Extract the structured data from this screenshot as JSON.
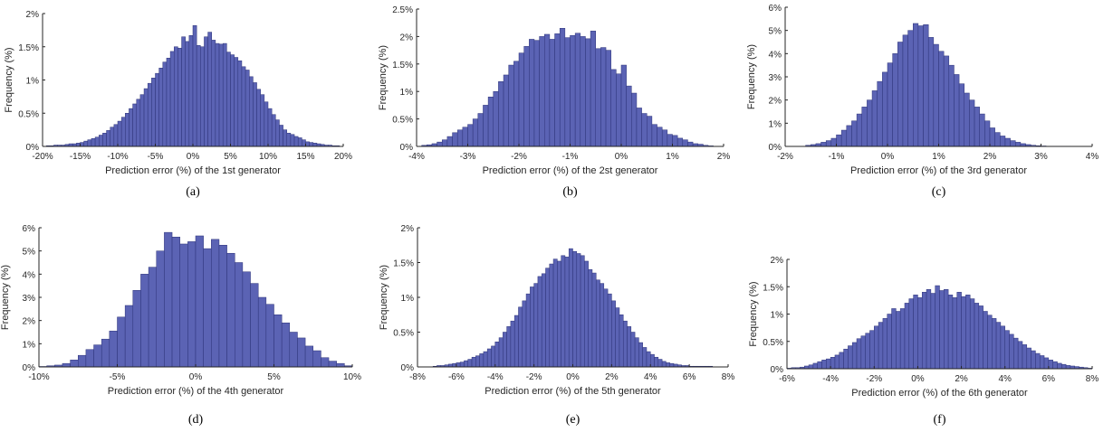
{
  "colors": {
    "bar_fill": "#5b63b4",
    "bar_edge": "#2c3278",
    "axis": "#262626"
  },
  "chart_data": [
    {
      "type": "bar",
      "caption": "(a)",
      "xlabel": "Prediction error (%) of the 1st generator",
      "ylabel": "Frequency (%)",
      "xlim": [
        -20,
        20
      ],
      "ylim": [
        0,
        2
      ],
      "xticks": [
        -20,
        -15,
        -10,
        -5,
        0,
        5,
        10,
        15,
        20
      ],
      "xtick_labels": [
        "-20%",
        "-15%",
        "-10%",
        "-5%",
        "0%",
        "5%",
        "10%",
        "15%",
        "20%"
      ],
      "yticks": [
        0,
        0.5,
        1,
        1.5,
        2
      ],
      "ytick_labels": [
        "0%",
        "0.5%",
        "1%",
        "1.5%",
        "2%"
      ],
      "bin_start": -19.5,
      "bin_width": 0.5,
      "values": [
        0.01,
        0.01,
        0.02,
        0.02,
        0.02,
        0.03,
        0.04,
        0.04,
        0.05,
        0.06,
        0.08,
        0.1,
        0.12,
        0.14,
        0.17,
        0.2,
        0.24,
        0.29,
        0.33,
        0.38,
        0.44,
        0.5,
        0.57,
        0.64,
        0.71,
        0.78,
        0.87,
        0.95,
        1.03,
        1.1,
        1.18,
        1.27,
        1.33,
        1.43,
        1.5,
        1.48,
        1.65,
        1.58,
        1.67,
        1.82,
        1.52,
        1.5,
        1.65,
        1.72,
        1.6,
        1.55,
        1.54,
        1.55,
        1.42,
        1.38,
        1.34,
        1.29,
        1.2,
        1.15,
        1.05,
        0.96,
        0.86,
        0.78,
        0.67,
        0.57,
        0.48,
        0.4,
        0.32,
        0.25,
        0.2,
        0.18,
        0.15,
        0.13,
        0.1,
        0.07,
        0.06,
        0.05,
        0.04,
        0.03,
        0.02,
        0.02,
        0.01,
        0.01
      ]
    },
    {
      "type": "bar",
      "caption": "(b)",
      "xlabel": "Prediction error (%) of the 2st generator",
      "ylabel": "Frequency (%)",
      "xlim": [
        -4,
        2
      ],
      "ylim": [
        0,
        2.5
      ],
      "xticks": [
        -4,
        -3,
        -2,
        -1,
        0,
        1,
        2
      ],
      "xtick_labels": [
        "-4%",
        "-3%",
        "-2%",
        "-1%",
        "0%",
        "1%",
        "2%"
      ],
      "yticks": [
        0,
        0.5,
        1,
        1.5,
        2,
        2.5
      ],
      "ytick_labels": [
        "0%",
        "0.5%",
        "1%",
        "1.5%",
        "2%",
        "2.5%"
      ],
      "bin_start": -3.9,
      "bin_width": 0.1,
      "values": [
        0.02,
        0.03,
        0.05,
        0.08,
        0.12,
        0.18,
        0.25,
        0.3,
        0.35,
        0.4,
        0.5,
        0.6,
        0.75,
        0.9,
        1.0,
        1.18,
        1.3,
        1.48,
        1.55,
        1.7,
        1.82,
        1.95,
        1.93,
        2.0,
        2.04,
        1.95,
        2.05,
        2.15,
        1.98,
        2.02,
        2.06,
        2.0,
        1.96,
        2.1,
        1.78,
        1.8,
        1.75,
        1.4,
        1.32,
        1.48,
        1.1,
        0.97,
        0.7,
        0.6,
        0.55,
        0.4,
        0.35,
        0.3,
        0.22,
        0.2,
        0.15,
        0.12,
        0.08,
        0.05,
        0.04,
        0.02,
        0.01
      ]
    },
    {
      "type": "bar",
      "caption": "(c)",
      "xlabel": "Prediction error (%) of the 3rd generator",
      "ylabel": "Frequency (%)",
      "xlim": [
        -2,
        4
      ],
      "ylim": [
        0,
        6
      ],
      "xticks": [
        -2,
        -1,
        0,
        1,
        2,
        3,
        4
      ],
      "xtick_labels": [
        "-2%",
        "-1%",
        "0%",
        "1%",
        "2%",
        "3%",
        "4%"
      ],
      "yticks": [
        0,
        1,
        2,
        3,
        4,
        5,
        6
      ],
      "ytick_labels": [
        "0%",
        "1%",
        "2%",
        "3%",
        "4%",
        "5%",
        "6%"
      ],
      "bin_start": -1.6,
      "bin_width": 0.1,
      "values": [
        0.05,
        0.08,
        0.12,
        0.18,
        0.25,
        0.35,
        0.5,
        0.7,
        0.9,
        1.1,
        1.4,
        1.7,
        2.0,
        2.4,
        2.8,
        3.2,
        3.6,
        4.0,
        4.5,
        4.8,
        5.0,
        5.3,
        5.2,
        5.25,
        4.7,
        4.4,
        4.1,
        3.9,
        3.5,
        3.1,
        2.7,
        2.3,
        2.0,
        1.7,
        1.4,
        1.1,
        0.8,
        0.6,
        0.45,
        0.35,
        0.25,
        0.18,
        0.12,
        0.08,
        0.05,
        0.03,
        0.02,
        0.01,
        0.01,
        0.01,
        0.01,
        0.01
      ]
    },
    {
      "type": "bar",
      "caption": "(d)",
      "xlabel": "Prediction error (%) of the 4th generator",
      "ylabel": "Frequency (%)",
      "xlim": [
        -10,
        10
      ],
      "ylim": [
        0,
        6
      ],
      "xticks": [
        -10,
        -5,
        0,
        5,
        10
      ],
      "xtick_labels": [
        "-10%",
        "-5%",
        "0%",
        "5%",
        "10%"
      ],
      "yticks": [
        0,
        1,
        2,
        3,
        4,
        5,
        6
      ],
      "ytick_labels": [
        "0%",
        "1%",
        "2%",
        "3%",
        "4%",
        "5%",
        "6%"
      ],
      "bin_start": -10,
      "bin_width": 0.5,
      "values": [
        0.02,
        0.05,
        0.08,
        0.15,
        0.3,
        0.5,
        0.75,
        0.95,
        1.2,
        1.55,
        2.15,
        2.65,
        3.3,
        4.0,
        4.3,
        5.0,
        5.8,
        5.6,
        5.3,
        5.4,
        5.65,
        5.1,
        5.5,
        5.25,
        4.9,
        4.5,
        4.1,
        3.6,
        3.0,
        2.7,
        2.25,
        1.9,
        1.5,
        1.25,
        0.9,
        0.7,
        0.4,
        0.25,
        0.15,
        0.05
      ]
    },
    {
      "type": "bar",
      "caption": "(e)",
      "xlabel": "Prediction error (%) of the 5th generator",
      "ylabel": "Frequency (%)",
      "xlim": [
        -8,
        8
      ],
      "ylim": [
        0,
        2
      ],
      "xticks": [
        -8,
        -6,
        -4,
        -2,
        0,
        2,
        4,
        6,
        8
      ],
      "xtick_labels": [
        "-8%",
        "-6%",
        "-4%",
        "-2%",
        "0%",
        "2%",
        "4%",
        "6%",
        "8%"
      ],
      "yticks": [
        0,
        0.5,
        1,
        1.5,
        2
      ],
      "ytick_labels": [
        "0%",
        "0.5%",
        "1%",
        "1.5%",
        "2%"
      ],
      "bin_start": -7.2,
      "bin_width": 0.2,
      "values": [
        0.01,
        0.02,
        0.02,
        0.03,
        0.04,
        0.05,
        0.06,
        0.07,
        0.09,
        0.11,
        0.14,
        0.16,
        0.19,
        0.22,
        0.26,
        0.3,
        0.36,
        0.42,
        0.5,
        0.58,
        0.66,
        0.74,
        0.86,
        0.95,
        1.05,
        1.15,
        1.2,
        1.3,
        1.34,
        1.42,
        1.48,
        1.55,
        1.52,
        1.6,
        1.58,
        1.7,
        1.66,
        1.63,
        1.6,
        1.52,
        1.4,
        1.35,
        1.25,
        1.2,
        1.12,
        1.05,
        0.95,
        0.85,
        0.75,
        0.66,
        0.58,
        0.5,
        0.42,
        0.35,
        0.28,
        0.22,
        0.18,
        0.14,
        0.11,
        0.08,
        0.06,
        0.05,
        0.04,
        0.03,
        0.02,
        0.02,
        0.01,
        0.01,
        0.01,
        0.01,
        0.01,
        0.01
      ]
    },
    {
      "type": "bar",
      "caption": "(f)",
      "xlabel": "Prediction error (%) of the 6th generator",
      "ylabel": "Frequency (%)",
      "xlim": [
        -6,
        8
      ],
      "ylim": [
        0,
        2
      ],
      "xticks": [
        -6,
        -4,
        -2,
        0,
        2,
        4,
        6,
        8
      ],
      "xtick_labels": [
        "-6%",
        "-4%",
        "-2%",
        "0%",
        "2%",
        "4%",
        "6%",
        "8%"
      ],
      "yticks": [
        0,
        0.5,
        1,
        1.5,
        2
      ],
      "ytick_labels": [
        "0%",
        "0.5%",
        "1%",
        "1.5%",
        "2%"
      ],
      "bin_start": -6,
      "bin_width": 0.2,
      "values": [
        0.01,
        0.02,
        0.02,
        0.03,
        0.05,
        0.07,
        0.1,
        0.13,
        0.16,
        0.18,
        0.21,
        0.25,
        0.3,
        0.36,
        0.42,
        0.48,
        0.55,
        0.6,
        0.65,
        0.7,
        0.78,
        0.85,
        0.92,
        1.0,
        1.1,
        1.05,
        1.1,
        1.2,
        1.28,
        1.35,
        1.3,
        1.4,
        1.45,
        1.38,
        1.52,
        1.43,
        1.45,
        1.35,
        1.3,
        1.4,
        1.32,
        1.35,
        1.28,
        1.2,
        1.15,
        1.05,
        0.98,
        0.92,
        0.85,
        0.78,
        0.7,
        0.63,
        0.56,
        0.5,
        0.44,
        0.38,
        0.33,
        0.28,
        0.24,
        0.2,
        0.16,
        0.13,
        0.1,
        0.08,
        0.06,
        0.05,
        0.04,
        0.03,
        0.02,
        0.01
      ]
    }
  ]
}
